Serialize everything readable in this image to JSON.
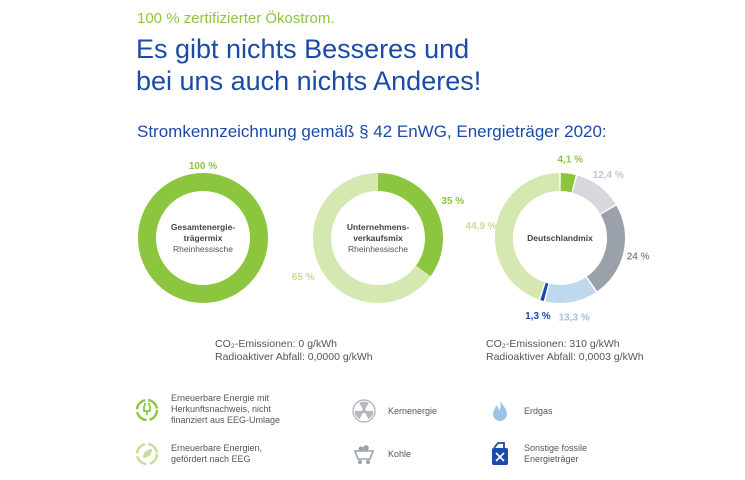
{
  "tagline": "100 % zertifizierter Ökostrom.",
  "headline": [
    "Es gibt nichts Besseres und",
    "bei uns auch nichts Anderes!"
  ],
  "subheadline": "Stromkennzeichnung gemäß § 42 EnWG, Energieträger 2020:",
  "colors": {
    "renewable_certified": "#8cc63f",
    "renewable_eeg": "#d5e8b2",
    "nuclear": "#d6d8dd",
    "coal": "#9aa1aa",
    "gas": "#bfd8ef",
    "other_fossil": "#1b4aa8"
  },
  "chart_data": [
    {
      "type": "pie",
      "title": "Gesamtenergie-trägermix",
      "subtitle": "Rheinhessische",
      "center_lines": [
        "Gesamtenergie-",
        "trägermix"
      ],
      "slices": [
        {
          "label": "100 %",
          "value": 100,
          "category": "renewable_certified"
        }
      ]
    },
    {
      "type": "pie",
      "title": "Unternehmens-verkaufsmix",
      "subtitle": "Rheinhessische",
      "center_lines": [
        "Unternehmens-",
        "verkaufsmix"
      ],
      "slices": [
        {
          "label": "35 %",
          "value": 35,
          "category": "renewable_certified"
        },
        {
          "label": "65 %",
          "value": 65,
          "category": "renewable_eeg"
        }
      ]
    },
    {
      "type": "pie",
      "title": "Deutschlandmix",
      "subtitle": "",
      "center_lines": [
        "Deutschlandmix"
      ],
      "slices": [
        {
          "label": "4,1 %",
          "value": 4.1,
          "category": "renewable_certified"
        },
        {
          "label": "12,4 %",
          "value": 12.4,
          "category": "nuclear"
        },
        {
          "label": "24 %",
          "value": 24,
          "category": "coal"
        },
        {
          "label": "13,3 %",
          "value": 13.3,
          "category": "gas"
        },
        {
          "label": "1,3 %",
          "value": 1.3,
          "category": "other_fossil"
        },
        {
          "label": "44,9 %",
          "value": 44.9,
          "category": "renewable_eeg"
        }
      ]
    }
  ],
  "emissions": {
    "rheinhessische": {
      "co2": "CO₂-Emissionen: 0 g/kWh",
      "waste": "Radioaktiver Abfall: 0,0000 g/kWh"
    },
    "deutschland": {
      "co2": "CO₂-Emissionen: 310 g/kWh",
      "waste": "Radioaktiver Abfall: 0,0003 g/kWh"
    }
  },
  "legend": [
    {
      "icon": "recycle-plug-icon",
      "text": "Erneuerbare Energie mit Herkunftsnachweis, nicht finanziert aus EEG-Umlage",
      "lines": [
        "Erneuerbare Energie mit",
        "Herkunftsnachweis, nicht",
        "finanziert aus EEG-Umlage"
      ],
      "category": "renewable_certified"
    },
    {
      "icon": "radiation-icon",
      "text": "Kernenergie",
      "lines": [
        "Kernenergie"
      ],
      "category": "nuclear"
    },
    {
      "icon": "flame-icon",
      "text": "Erdgas",
      "lines": [
        "Erdgas"
      ],
      "category": "gas"
    },
    {
      "icon": "recycle-leaf-icon",
      "text": "Erneuerbare Energien, gefördert nach EEG",
      "lines": [
        "Erneuerbare Energien,",
        "gefördert nach EEG"
      ],
      "category": "renewable_eeg"
    },
    {
      "icon": "coal-cart-icon",
      "text": "Kohle",
      "lines": [
        "Kohle"
      ],
      "category": "coal"
    },
    {
      "icon": "fuel-canister-icon",
      "text": "Sonstige fossile Energieträger",
      "lines": [
        "Sonstige fossile",
        "Energieträger"
      ],
      "category": "other_fossil"
    }
  ]
}
